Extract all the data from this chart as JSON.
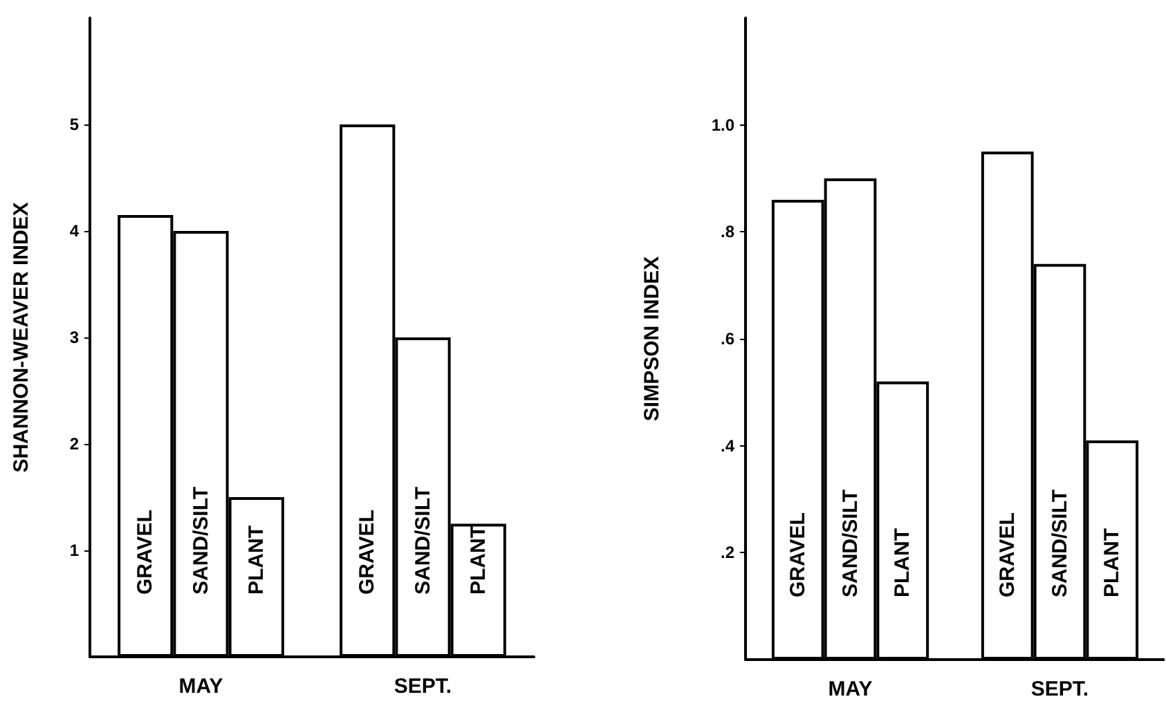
{
  "chart_data": [
    {
      "type": "bar",
      "ylabel": "SHANNON-WEAVER INDEX",
      "categories": [
        "MAY",
        "SEPT."
      ],
      "ylim": [
        0,
        6
      ],
      "yticks": [
        1,
        2,
        3,
        4,
        5
      ],
      "series": [
        {
          "name": "GRAVEL",
          "color": "#ffffff",
          "values": [
            4.15,
            5.0
          ]
        },
        {
          "name": "SAND/SILT",
          "color": "#ffffff",
          "values": [
            4.0,
            3.0
          ]
        },
        {
          "name": "PLANT",
          "color": "#ffffff",
          "values": [
            1.5,
            1.25
          ]
        }
      ]
    },
    {
      "type": "bar",
      "ylabel": "SIMPSON INDEX",
      "categories": [
        "MAY",
        "SEPT."
      ],
      "ylim": [
        0,
        1.2
      ],
      "yticks": [
        {
          "value": 0.2,
          "label": ".2"
        },
        {
          "value": 0.4,
          "label": ".4"
        },
        {
          "value": 0.6,
          "label": ".6"
        },
        {
          "value": 0.8,
          "label": ".8"
        },
        {
          "value": 1.0,
          "label": "1.0"
        }
      ],
      "series": [
        {
          "name": "GRAVEL",
          "color": "#ffffff",
          "values": [
            0.86,
            0.95
          ]
        },
        {
          "name": "SAND/SILT",
          "color": "#ffffff",
          "values": [
            0.9,
            0.74
          ]
        },
        {
          "name": "PLANT",
          "color": "#ffffff",
          "values": [
            0.52,
            0.41
          ]
        }
      ]
    }
  ]
}
